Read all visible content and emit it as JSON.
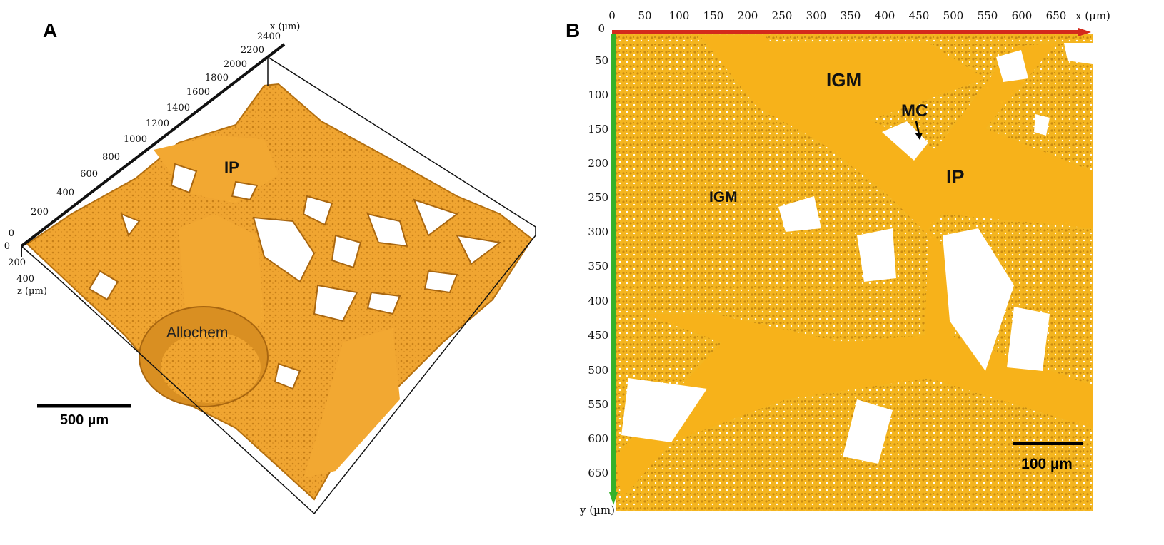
{
  "colors": {
    "bone": "#f0a531",
    "bone_shadow": "#b36f10",
    "pore": "#ffffff",
    "bone_b": "#f4b51f",
    "bone_b_shadow": "#a8740d",
    "x_axis": "#d42a1c",
    "y_axis": "#34b12a",
    "frame": "#111111"
  },
  "panel_a": {
    "letter": "A",
    "x_axis_title": "x (µm)",
    "x_ticks": [
      "2400",
      "2200",
      "2000",
      "1800",
      "1600",
      "1400",
      "1200",
      "1000",
      "800",
      "600",
      "400",
      "200",
      "0"
    ],
    "z_axis_title": "z (µm)",
    "z_ticks": [
      "0",
      "200",
      "400"
    ],
    "annotations": {
      "ip": "IP",
      "allochem": "Allochem"
    },
    "scale_bar": "500 µm"
  },
  "panel_b": {
    "letter": "B",
    "origin": "0",
    "x_axis_title": "x (µm)",
    "x_ticks": [
      "0",
      "50",
      "100",
      "150",
      "200",
      "250",
      "300",
      "350",
      "400",
      "450",
      "500",
      "550",
      "600",
      "650"
    ],
    "y_axis_title": "y (µm)",
    "y_ticks": [
      "50",
      "100",
      "150",
      "200",
      "250",
      "300",
      "350",
      "400",
      "450",
      "500",
      "550",
      "600",
      "650"
    ],
    "annotations": {
      "igm_top": "IGM",
      "igm_left": "IGM",
      "mc": "MC",
      "ip": "IP"
    },
    "scale_bar": "100 µm"
  }
}
